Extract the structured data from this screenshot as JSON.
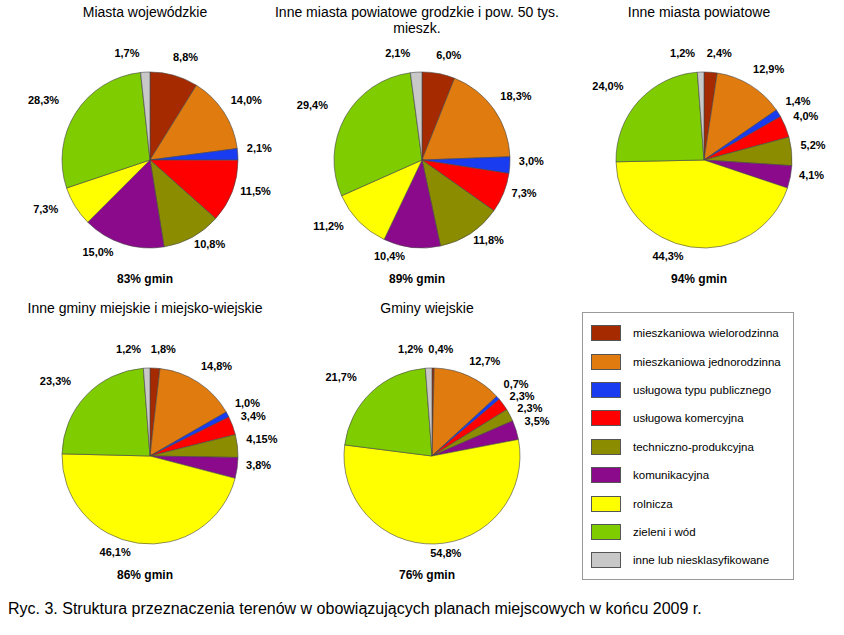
{
  "caption": "Ryc. 3. Struktura przeznaczenia terenów w obowiązujących planach miejscowych w końcu 2009 r.",
  "chart_data": [
    {
      "type": "pie",
      "title": "Miasta wojewódzkie",
      "subtitle": "83% gmin",
      "categories": [
        "mieszkaniowa wielorodzinna",
        "mieszkaniowa jednorodzinna",
        "usługowa typu publicznego",
        "usługowa komercyjna",
        "techniczno-produkcyjna",
        "komunikacyjna",
        "rolnicza",
        "zieleni i wód",
        "inne lub niesklasyfikowane"
      ],
      "values": [
        8.8,
        14.0,
        2.1,
        11.5,
        10.8,
        15.0,
        7.3,
        28.3,
        1.7
      ],
      "value_labels": [
        "8,8%",
        "14,0%",
        "2,1%",
        "11,5%",
        "10,8%",
        "15,0%",
        "7,3%",
        "28,3%",
        "1,7%"
      ],
      "colors": [
        "#a52a00",
        "#e07b10",
        "#1a3cf0",
        "#ff0000",
        "#8c8c00",
        "#8b0a8b",
        "#ffff00",
        "#7fcc00",
        "#c8c8c8"
      ],
      "data_labels": true
    },
    {
      "type": "pie",
      "title": "Inne miasta powiatowe grodzkie i pow. 50 tys. mieszk.",
      "subtitle": "89% gmin",
      "categories": [
        "mieszkaniowa wielorodzinna",
        "mieszkaniowa jednorodzinna",
        "usługowa typu publicznego",
        "usługowa komercyjna",
        "techniczno-produkcyjna",
        "komunikacyjna",
        "rolnicza",
        "zieleni i wód",
        "inne lub niesklasyfikowane"
      ],
      "values": [
        6.0,
        18.3,
        3.0,
        7.3,
        11.8,
        10.4,
        11.2,
        29.4,
        2.1
      ],
      "value_labels": [
        "6,0%",
        "18,3%",
        "3,0%",
        "7,3%",
        "11,8%",
        "10,4%",
        "11,2%",
        "29,4%",
        "2,1%"
      ],
      "colors": [
        "#a52a00",
        "#e07b10",
        "#1a3cf0",
        "#ff0000",
        "#8c8c00",
        "#8b0a8b",
        "#ffff00",
        "#7fcc00",
        "#c8c8c8"
      ],
      "data_labels": true
    },
    {
      "type": "pie",
      "title": "Inne miasta powiatowe",
      "subtitle": "94% gmin",
      "categories": [
        "mieszkaniowa wielorodzinna",
        "mieszkaniowa jednorodzinna",
        "usługowa typu publicznego",
        "usługowa komercyjna",
        "techniczno-produkcyjna",
        "komunikacyjna",
        "rolnicza",
        "zieleni i wód",
        "inne lub niesklasyfikowane"
      ],
      "values": [
        2.4,
        12.9,
        1.4,
        4.0,
        5.2,
        4.1,
        44.3,
        24.0,
        1.2
      ],
      "value_labels": [
        "2,4%",
        "12,9%",
        "1,4%",
        "4,0%",
        "5,2%",
        "4,1%",
        "44,3%",
        "24,0%",
        "1,2%"
      ],
      "colors": [
        "#a52a00",
        "#e07b10",
        "#1a3cf0",
        "#ff0000",
        "#8c8c00",
        "#8b0a8b",
        "#ffff00",
        "#7fcc00",
        "#c8c8c8"
      ],
      "data_labels": true
    },
    {
      "type": "pie",
      "title": "Inne gminy miejskie i miejsko-wiejskie",
      "subtitle": "86% gmin",
      "categories": [
        "mieszkaniowa wielorodzinna",
        "mieszkaniowa jednorodzinna",
        "usługowa typu publicznego",
        "usługowa komercyjna",
        "techniczno-produkcyjna",
        "komunikacyjna",
        "rolnicza",
        "zieleni i wód",
        "inne lub niesklasyfikowane"
      ],
      "values": [
        1.8,
        14.8,
        1.0,
        3.4,
        4.15,
        3.8,
        46.1,
        23.3,
        1.2
      ],
      "value_labels": [
        "1,8%",
        "14,8%",
        "1,0%",
        "3,4%",
        "4,15%",
        "3,8%",
        "46,1%",
        "23,3%",
        "1,2%"
      ],
      "colors": [
        "#a52a00",
        "#e07b10",
        "#1a3cf0",
        "#ff0000",
        "#8c8c00",
        "#8b0a8b",
        "#ffff00",
        "#7fcc00",
        "#c8c8c8"
      ],
      "data_labels": true
    },
    {
      "type": "pie",
      "title": "Gminy wiejskie",
      "subtitle": "76% gmin",
      "categories": [
        "mieszkaniowa wielorodzinna",
        "mieszkaniowa jednorodzinna",
        "usługowa typu publicznego",
        "usługowa komercyjna",
        "techniczno-produkcyjna",
        "komunikacyjna",
        "rolnicza",
        "zieleni i wód",
        "inne lub niesklasyfikowane"
      ],
      "values": [
        0.4,
        12.7,
        0.7,
        2.3,
        2.3,
        3.5,
        54.8,
        21.7,
        1.2
      ],
      "value_labels": [
        "0,4%",
        "12,7%",
        "0,7%",
        "2,3%",
        "2,3%",
        "3,5%",
        "54,8%",
        "21,7%",
        "1,2%"
      ],
      "colors": [
        "#a52a00",
        "#e07b10",
        "#1a3cf0",
        "#ff0000",
        "#8c8c00",
        "#8b0a8b",
        "#ffff00",
        "#7fcc00",
        "#c8c8c8"
      ],
      "data_labels": true
    }
  ]
}
